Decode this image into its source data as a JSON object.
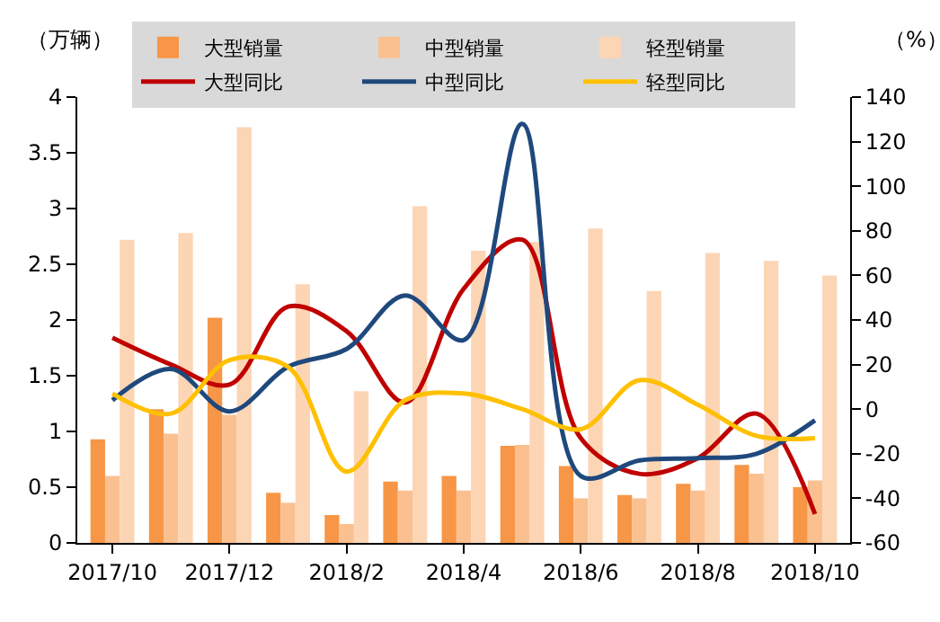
{
  "chart_data": {
    "type": "bar",
    "categories": [
      "2017/10",
      null,
      "2017/12",
      null,
      "2018/2",
      null,
      "2018/4",
      null,
      "2018/6",
      null,
      "2018/8",
      null,
      "2018/10"
    ],
    "ylabel": "（万辆）",
    "y2label": "（%）",
    "series": [
      {
        "name": "大型销量",
        "color": "#f79646",
        "values": [
          0.93,
          1.2,
          2.02,
          0.45,
          0.25,
          0.55,
          0.6,
          0.87,
          0.69,
          0.43,
          0.53,
          0.7,
          0.5
        ]
      },
      {
        "name": "中型销量",
        "color": "#fac090",
        "values": [
          0.6,
          0.98,
          1.15,
          0.36,
          0.17,
          0.47,
          0.47,
          0.88,
          0.4,
          0.4,
          0.47,
          0.62,
          0.56
        ]
      },
      {
        "name": "轻型销量",
        "color": "#fcd5b5",
        "values": [
          2.72,
          2.78,
          3.73,
          2.32,
          1.36,
          3.02,
          2.62,
          2.7,
          2.82,
          2.26,
          2.6,
          2.53,
          2.4
        ]
      },
      {
        "name": "大型同比",
        "type": "line",
        "axis": "y2",
        "color": "#c00000",
        "values": [
          32,
          20,
          11,
          46,
          35,
          3,
          54,
          76,
          -13,
          -29,
          -22,
          -2,
          -47
        ]
      },
      {
        "name": "中型同比",
        "type": "line",
        "axis": "y2",
        "color": "#1f497d",
        "values": [
          4,
          18,
          -1,
          19,
          27,
          51,
          31,
          128,
          -30,
          -23,
          -22,
          -20,
          -5
        ]
      },
      {
        "name": "轻型同比",
        "type": "line",
        "axis": "y2",
        "color": "#ffc000",
        "values": [
          7,
          -2,
          22,
          19,
          -28,
          4,
          7,
          0,
          -9,
          13,
          2,
          -12,
          -13
        ]
      }
    ],
    "ylim": [
      0,
      4
    ],
    "yticks": [
      0,
      0.5,
      1,
      1.5,
      2,
      2.5,
      3,
      3.5,
      4
    ],
    "y2lim": [
      -60,
      140
    ],
    "y2ticks": [
      -60,
      -40,
      -20,
      0,
      20,
      40,
      60,
      80,
      100,
      120,
      140
    ],
    "legend": "top",
    "marker": "none",
    "line_style": "solid"
  }
}
